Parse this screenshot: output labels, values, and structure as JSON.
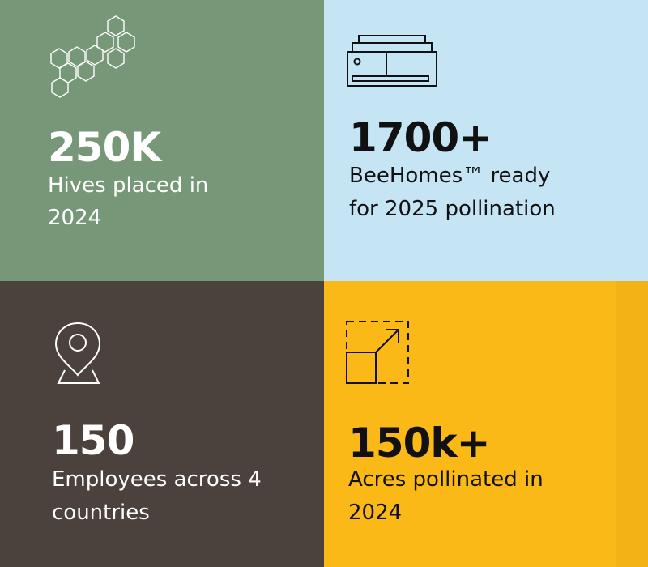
{
  "colors": {
    "green_tile": "#779878",
    "blue_tile": "#c5e5f5",
    "brown_tile": "#4b423e",
    "yellow_tile": "#fbb917"
  },
  "stats": [
    {
      "icon": "honeycomb-icon",
      "value": "250K",
      "line1": "Hives placed in",
      "line2": "2024"
    },
    {
      "icon": "beehive-box-icon",
      "value": "1700+",
      "line1": "BeeHomes™ ready",
      "line2": "for 2025 pollination"
    },
    {
      "icon": "location-pin-icon",
      "value": "150",
      "line1": "Employees across 4",
      "line2": "countries"
    },
    {
      "icon": "expand-area-icon",
      "value": "150k+",
      "line1": "Acres pollinated in",
      "line2": "2024"
    }
  ]
}
